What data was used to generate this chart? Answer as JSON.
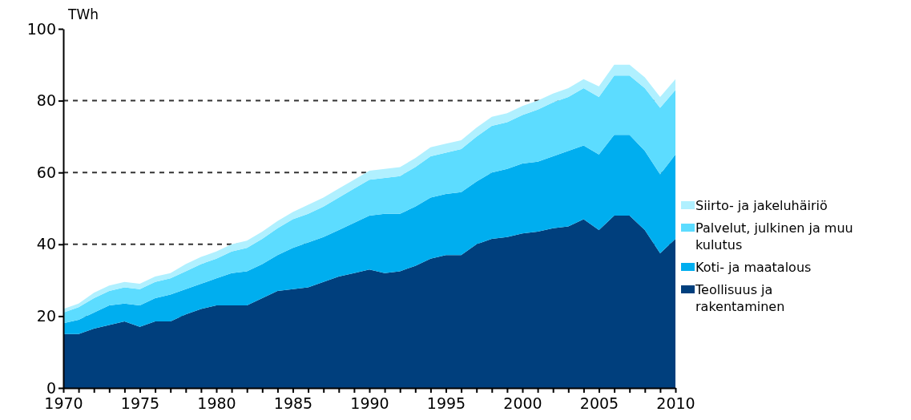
{
  "chart_data": {
    "type": "area",
    "stacked": true,
    "ylabel": "TWh",
    "x": [
      1970,
      1971,
      1972,
      1973,
      1974,
      1975,
      1976,
      1977,
      1978,
      1979,
      1980,
      1981,
      1982,
      1983,
      1984,
      1985,
      1986,
      1987,
      1988,
      1989,
      1990,
      1991,
      1992,
      1993,
      1994,
      1995,
      1996,
      1997,
      1998,
      1999,
      2000,
      2001,
      2002,
      2003,
      2004,
      2005,
      2006,
      2007,
      2008,
      2009,
      2010
    ],
    "series": [
      {
        "name": "Teollisuus ja rakentaminen",
        "color": "#003f7d",
        "values": [
          15,
          15,
          16.5,
          17.5,
          18.5,
          17,
          18.5,
          18.5,
          20.5,
          22,
          23,
          23,
          23,
          25,
          27,
          27.5,
          28,
          29.5,
          31,
          32,
          33,
          32,
          32.5,
          34,
          36,
          37,
          37,
          40,
          41.5,
          42,
          43,
          43.5,
          44.5,
          45,
          47,
          44,
          48,
          48,
          44,
          37.5,
          41.5
        ]
      },
      {
        "name": "Koti- ja maatalous",
        "color": "#00aeef",
        "values": [
          3,
          4,
          4.5,
          5.5,
          5,
          6,
          6.5,
          7.5,
          7,
          7,
          7.5,
          9,
          9.5,
          9.5,
          10,
          11.5,
          12.5,
          12.5,
          13,
          14,
          15,
          16.5,
          16,
          16.5,
          17,
          17,
          17.5,
          17.5,
          18.5,
          19,
          19.5,
          19.5,
          20,
          21,
          20.5,
          21,
          22.5,
          22.5,
          22,
          22,
          23.5
        ]
      },
      {
        "name": "Palvelut, julkinen ja muu kulutus",
        "color": "#5cdcff",
        "values": [
          3,
          3.5,
          4,
          4,
          4.5,
          4.5,
          4.5,
          4.5,
          5,
          5.5,
          5.5,
          6,
          6.5,
          7,
          7.5,
          8,
          8,
          8.5,
          9,
          9.5,
          10,
          10,
          10.5,
          11,
          11.5,
          11.5,
          12,
          12.5,
          13,
          13,
          13.5,
          14.5,
          15,
          15,
          16,
          16,
          16.5,
          16.5,
          17.5,
          18.5,
          18
        ]
      },
      {
        "name": "Siirto- ja jakeluhäiriö",
        "color": "#b0f0ff",
        "values": [
          1,
          1,
          1.5,
          1.5,
          1.5,
          1.5,
          1.5,
          1.5,
          2,
          2,
          2,
          2,
          2,
          2,
          2,
          2,
          2.5,
          2.5,
          2.5,
          2.5,
          2.5,
          2.5,
          2.5,
          2.5,
          2.5,
          2.5,
          2.5,
          2.5,
          2.5,
          2.5,
          2.5,
          2.5,
          2.5,
          2.5,
          2.5,
          3,
          3,
          3,
          3,
          3,
          3
        ]
      }
    ],
    "xlim": [
      1970,
      2010
    ],
    "xticks": [
      1970,
      {
        "value": 1971,
        "label": null
      },
      {
        "value": 1972,
        "label": null
      },
      {
        "value": 1973,
        "label": null
      },
      {
        "value": 1974,
        "label": null
      },
      1975,
      {
        "value": 1976,
        "label": null
      },
      {
        "value": 1977,
        "label": null
      },
      {
        "value": 1978,
        "label": null
      },
      {
        "value": 1979,
        "label": null
      },
      1980,
      {
        "value": 1981,
        "label": null
      },
      {
        "value": 1982,
        "label": null
      },
      {
        "value": 1983,
        "label": null
      },
      {
        "value": 1984,
        "label": null
      },
      1985,
      {
        "value": 1986,
        "label": null
      },
      {
        "value": 1987,
        "label": null
      },
      {
        "value": 1988,
        "label": null
      },
      {
        "value": 1989,
        "label": null
      },
      1990,
      {
        "value": 1991,
        "label": null
      },
      {
        "value": 1992,
        "label": null
      },
      {
        "value": 1993,
        "label": null
      },
      {
        "value": 1994,
        "label": null
      },
      1995,
      {
        "value": 1996,
        "label": null
      },
      {
        "value": 1997,
        "label": null
      },
      {
        "value": 1998,
        "label": null
      },
      {
        "value": 1999,
        "label": null
      },
      2000,
      {
        "value": 2001,
        "label": null
      },
      {
        "value": 2002,
        "label": null
      },
      {
        "value": 2003,
        "label": null
      },
      {
        "value": 2004,
        "label": null
      },
      2005,
      {
        "value": 2006,
        "label": null
      },
      {
        "value": 2007,
        "label": null
      },
      {
        "value": 2008,
        "label": null
      },
      {
        "value": 2009,
        "label": null
      },
      2010
    ],
    "ylim": [
      0,
      100
    ],
    "yticks": [
      0,
      20,
      40,
      60,
      80,
      100
    ],
    "grid": "y",
    "line_style": "dashed",
    "legend": "right"
  }
}
